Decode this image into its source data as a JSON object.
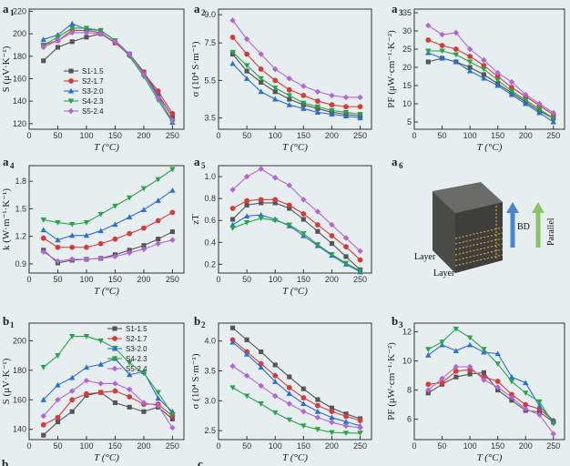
{
  "colors": {
    "S1-1.5": "#555555",
    "S2-1.7": "#d63b3b",
    "S3-2.0": "#2c6fcc",
    "S4-2.3": "#2aa24a",
    "S5-2.4": "#b266d6",
    "background": "#e6eef0"
  },
  "legend": [
    "S1-1.5",
    "S2-1.7",
    "S3-2.0",
    "S4-2.3",
    "S5-2.4"
  ],
  "markers": [
    "square",
    "circle",
    "triangle-up",
    "triangle-down",
    "diamond"
  ],
  "chart_data": [
    {
      "id": "a1",
      "type": "line",
      "label": "a",
      "sub": "1",
      "xlabel": "T (°C)",
      "ylabel": "S (μV·K⁻¹)",
      "xlim": [
        0,
        270
      ],
      "ylim": [
        115,
        222
      ],
      "xticks": [
        0,
        50,
        100,
        150,
        200,
        250
      ],
      "yticks": [
        120,
        140,
        160,
        180,
        200,
        220
      ],
      "x": [
        25,
        50,
        75,
        100,
        125,
        150,
        175,
        200,
        225,
        250
      ],
      "legend": true,
      "series": [
        {
          "name": "S1-1.5",
          "values": [
            176,
            188,
            193,
            197,
            200,
            192,
            182,
            166,
            146,
            126
          ]
        },
        {
          "name": "S2-1.7",
          "values": [
            190,
            194,
            203,
            203,
            201,
            192,
            181,
            165,
            149,
            129
          ]
        },
        {
          "name": "S3-2.0",
          "values": [
            195,
            199,
            209,
            204,
            203,
            194,
            182,
            164,
            145,
            121
          ]
        },
        {
          "name": "S4-2.3",
          "values": [
            190,
            197,
            205,
            205,
            203,
            194,
            180,
            162,
            141,
            121
          ]
        },
        {
          "name": "S5-2.4",
          "values": [
            188,
            194,
            201,
            201,
            200,
            193,
            182,
            164,
            143,
            123
          ]
        }
      ]
    },
    {
      "id": "a2",
      "type": "line",
      "label": "a",
      "sub": "2",
      "xlabel": "T (°C)",
      "ylabel": "σ (10⁴ S·m⁻¹)",
      "xlim": [
        0,
        270
      ],
      "ylim": [
        2.9,
        9.3
      ],
      "xticks": [
        0,
        50,
        100,
        150,
        200,
        250
      ],
      "yticks": [
        3.5,
        5.5,
        7.5,
        9.0
      ],
      "ytick_labels": [
        "3.5",
        "5.5",
        "7.5",
        "9.0"
      ],
      "x": [
        25,
        50,
        75,
        100,
        125,
        150,
        175,
        200,
        225,
        250
      ],
      "series": [
        {
          "name": "S1-1.5",
          "values": [
            6.9,
            6.0,
            5.4,
            4.9,
            4.5,
            4.2,
            4.0,
            3.8,
            3.7,
            3.6
          ]
        },
        {
          "name": "S2-1.7",
          "values": [
            7.8,
            6.9,
            6.1,
            5.5,
            5.0,
            4.7,
            4.4,
            4.2,
            4.1,
            4.1
          ]
        },
        {
          "name": "S3-2.0",
          "values": [
            6.4,
            5.6,
            4.9,
            4.5,
            4.2,
            4.0,
            3.8,
            3.7,
            3.6,
            3.5
          ]
        },
        {
          "name": "S4-2.3",
          "values": [
            7.0,
            6.3,
            5.6,
            5.1,
            4.7,
            4.3,
            4.1,
            3.9,
            3.8,
            3.7
          ]
        },
        {
          "name": "S5-2.4",
          "values": [
            8.7,
            7.7,
            6.9,
            6.1,
            5.6,
            5.2,
            4.9,
            4.7,
            4.6,
            4.6
          ]
        }
      ]
    },
    {
      "id": "a3",
      "type": "line",
      "label": "a",
      "sub": "3",
      "xlabel": "T (°C)",
      "ylabel": "PF (μW·cm⁻¹·K⁻²)",
      "xlim": [
        0,
        270
      ],
      "ylim": [
        3,
        36
      ],
      "xticks": [
        0,
        50,
        100,
        150,
        200,
        250
      ],
      "yticks": [
        5,
        10,
        15,
        20,
        25,
        30,
        35
      ],
      "x": [
        25,
        50,
        75,
        100,
        125,
        150,
        175,
        200,
        225,
        250
      ],
      "series": [
        {
          "name": "S1-1.5",
          "values": [
            21.5,
            22.5,
            21.5,
            20.0,
            18.0,
            15.5,
            13.0,
            10.5,
            8.0,
            6.0
          ]
        },
        {
          "name": "S2-1.7",
          "values": [
            27.5,
            26.0,
            25.0,
            23.0,
            20.5,
            17.5,
            14.5,
            12.0,
            9.5,
            7.0
          ]
        },
        {
          "name": "S3-2.0",
          "values": [
            24.0,
            22.5,
            21.5,
            19.0,
            17.0,
            15.0,
            12.5,
            10.0,
            7.5,
            5.0
          ]
        },
        {
          "name": "S4-2.3",
          "values": [
            24.5,
            24.5,
            23.5,
            21.5,
            19.5,
            16.5,
            13.5,
            11.0,
            8.5,
            6.0
          ]
        },
        {
          "name": "S5-2.4",
          "values": [
            31.5,
            29.0,
            29.5,
            25.0,
            22.0,
            18.5,
            16.0,
            12.5,
            10.0,
            7.5
          ]
        }
      ]
    },
    {
      "id": "a4",
      "type": "line",
      "label": "a",
      "sub": "4",
      "xlabel": "T (°C)",
      "ylabel": "k (W·m⁻¹·K⁻¹)",
      "xlim": [
        0,
        270
      ],
      "ylim": [
        0.8,
        1.97
      ],
      "xticks": [
        0,
        50,
        100,
        150,
        200,
        250
      ],
      "yticks": [
        0.9,
        1.2,
        1.5,
        1.8
      ],
      "ytick_labels": [
        "0.9",
        "1.2",
        "1.5",
        "1.8"
      ],
      "x": [
        25,
        50,
        75,
        100,
        125,
        150,
        175,
        200,
        225,
        250
      ],
      "series": [
        {
          "name": "S1-1.5",
          "values": [
            1.05,
            0.91,
            0.94,
            0.95,
            0.96,
            1.0,
            1.05,
            1.1,
            1.17,
            1.25
          ]
        },
        {
          "name": "S2-1.7",
          "values": [
            1.18,
            1.08,
            1.08,
            1.08,
            1.12,
            1.17,
            1.23,
            1.29,
            1.37,
            1.46
          ]
        },
        {
          "name": "S3-2.0",
          "values": [
            1.27,
            1.16,
            1.21,
            1.21,
            1.26,
            1.33,
            1.41,
            1.49,
            1.59,
            1.7
          ]
        },
        {
          "name": "S4-2.3",
          "values": [
            1.38,
            1.35,
            1.33,
            1.35,
            1.44,
            1.53,
            1.62,
            1.72,
            1.82,
            1.93
          ]
        },
        {
          "name": "S5-2.4",
          "values": [
            1.03,
            0.93,
            0.95,
            0.95,
            0.96,
            0.98,
            1.02,
            1.06,
            1.12,
            1.16
          ]
        }
      ]
    },
    {
      "id": "a5",
      "type": "line",
      "label": "a",
      "sub": "5",
      "xlabel": "T (°C)",
      "ylabel": "zT",
      "xlim": [
        0,
        270
      ],
      "ylim": [
        0.12,
        1.1
      ],
      "xticks": [
        0,
        50,
        100,
        150,
        200,
        250
      ],
      "yticks": [
        0.2,
        0.4,
        0.6,
        0.8,
        1.0
      ],
      "ytick_labels": [
        "0.2",
        "0.4",
        "0.6",
        "0.8",
        "1.0"
      ],
      "x": [
        25,
        50,
        75,
        100,
        125,
        150,
        175,
        200,
        225,
        250
      ],
      "series": [
        {
          "name": "S1-1.5",
          "values": [
            0.61,
            0.74,
            0.76,
            0.76,
            0.71,
            0.61,
            0.5,
            0.39,
            0.27,
            0.15
          ]
        },
        {
          "name": "S2-1.7",
          "values": [
            0.71,
            0.78,
            0.79,
            0.79,
            0.74,
            0.66,
            0.56,
            0.46,
            0.36,
            0.24
          ]
        },
        {
          "name": "S3-2.0",
          "values": [
            0.56,
            0.64,
            0.65,
            0.61,
            0.55,
            0.46,
            0.37,
            0.28,
            0.2,
            0.13
          ]
        },
        {
          "name": "S4-2.3",
          "values": [
            0.53,
            0.58,
            0.62,
            0.6,
            0.56,
            0.48,
            0.38,
            0.29,
            0.21,
            0.14
          ]
        },
        {
          "name": "S5-2.4",
          "values": [
            0.88,
            1.0,
            1.07,
            0.99,
            0.92,
            0.79,
            0.68,
            0.56,
            0.44,
            0.32
          ]
        }
      ]
    },
    {
      "id": "b1",
      "type": "line",
      "label": "b",
      "sub": "1",
      "xlabel": "T (°C)",
      "ylabel": "S (μV·K⁻¹)",
      "xlim": [
        0,
        270
      ],
      "ylim": [
        133,
        212
      ],
      "xticks": [
        0,
        50,
        100,
        150,
        200,
        250
      ],
      "yticks": [
        140,
        160,
        180,
        200
      ],
      "x": [
        25,
        50,
        75,
        100,
        125,
        150,
        175,
        200,
        225,
        250
      ],
      "legend": true,
      "series": [
        {
          "name": "S1-1.5",
          "values": [
            136,
            145,
            152,
            163,
            165,
            158,
            155,
            152,
            155,
            147
          ]
        },
        {
          "name": "S2-1.7",
          "values": [
            143,
            148,
            160,
            164,
            165,
            166,
            162,
            157,
            157,
            149
          ]
        },
        {
          "name": "S3-2.0",
          "values": [
            160,
            170,
            175,
            182,
            184,
            188,
            177,
            179,
            161,
            152
          ]
        },
        {
          "name": "S4-2.3",
          "values": [
            182,
            190,
            203,
            203,
            200,
            195,
            185,
            178,
            165,
            150
          ]
        },
        {
          "name": "S5-2.4",
          "values": [
            149,
            160,
            166,
            173,
            171,
            171,
            167,
            158,
            156,
            141
          ]
        }
      ]
    },
    {
      "id": "b2",
      "type": "line",
      "label": "b",
      "sub": "2",
      "xlabel": "T (°C)",
      "ylabel": "σ (10⁴ S·m⁻¹)",
      "xlim": [
        0,
        270
      ],
      "ylim": [
        2.35,
        4.3
      ],
      "xticks": [
        0,
        50,
        100,
        150,
        200,
        250
      ],
      "yticks": [
        2.5,
        3.0,
        3.5,
        4.0
      ],
      "ytick_labels": [
        "2.5",
        "3.0",
        "3.5",
        "4.0"
      ],
      "x": [
        25,
        50,
        75,
        100,
        125,
        150,
        175,
        200,
        225,
        250
      ],
      "series": [
        {
          "name": "S1-1.5",
          "values": [
            4.22,
            4.02,
            3.82,
            3.6,
            3.4,
            3.2,
            3.02,
            2.88,
            2.78,
            2.7
          ]
        },
        {
          "name": "S2-1.7",
          "values": [
            4.02,
            3.82,
            3.62,
            3.42,
            3.22,
            3.05,
            2.92,
            2.82,
            2.74,
            2.67
          ]
        },
        {
          "name": "S3-2.0",
          "values": [
            3.98,
            3.78,
            3.56,
            3.32,
            3.12,
            2.95,
            2.82,
            2.72,
            2.65,
            2.58
          ]
        },
        {
          "name": "S4-2.3",
          "values": [
            3.22,
            3.08,
            2.95,
            2.8,
            2.68,
            2.58,
            2.52,
            2.47,
            2.46,
            2.46
          ]
        },
        {
          "name": "S5-2.4",
          "values": [
            3.58,
            3.42,
            3.25,
            3.08,
            2.95,
            2.82,
            2.72,
            2.64,
            2.58,
            2.55
          ]
        }
      ]
    },
    {
      "id": "b3",
      "type": "line",
      "label": "b",
      "sub": "3",
      "xlabel": "T (°C)",
      "ylabel": "PF (μW·cm⁻¹·K⁻²)",
      "xlim": [
        0,
        270
      ],
      "ylim": [
        4.6,
        12.6
      ],
      "xticks": [
        0,
        50,
        100,
        150,
        200,
        250
      ],
      "yticks": [
        6,
        8,
        10,
        12
      ],
      "x": [
        25,
        50,
        75,
        100,
        125,
        150,
        175,
        200,
        225,
        250
      ],
      "series": [
        {
          "name": "S1-1.5",
          "values": [
            7.8,
            8.4,
            8.9,
            9.1,
            9.2,
            8.0,
            7.3,
            6.6,
            6.5,
            5.8
          ]
        },
        {
          "name": "S2-1.7",
          "values": [
            8.4,
            8.5,
            9.3,
            9.4,
            8.9,
            8.6,
            7.7,
            7.0,
            6.7,
            5.9
          ]
        },
        {
          "name": "S3-2.0",
          "values": [
            10.4,
            11.1,
            10.7,
            11.1,
            10.6,
            10.5,
            8.9,
            8.5,
            6.9,
            5.9
          ]
        },
        {
          "name": "S4-2.3",
          "values": [
            10.8,
            11.3,
            12.2,
            11.6,
            10.8,
            9.8,
            8.6,
            7.8,
            7.2,
            5.7
          ]
        },
        {
          "name": "S5-2.4",
          "values": [
            8.0,
            8.8,
            9.6,
            9.6,
            8.7,
            8.2,
            7.5,
            6.7,
            6.3,
            5.0
          ]
        }
      ]
    }
  ],
  "panel_a6": {
    "label": "a",
    "sub": "6",
    "arrow_bd_label": "BD",
    "arrow_parallel_label": "Parallel",
    "layer_label_1": "Layer",
    "layer_label_2": "Layer"
  },
  "cropped_labels": [
    "b",
    "c"
  ]
}
